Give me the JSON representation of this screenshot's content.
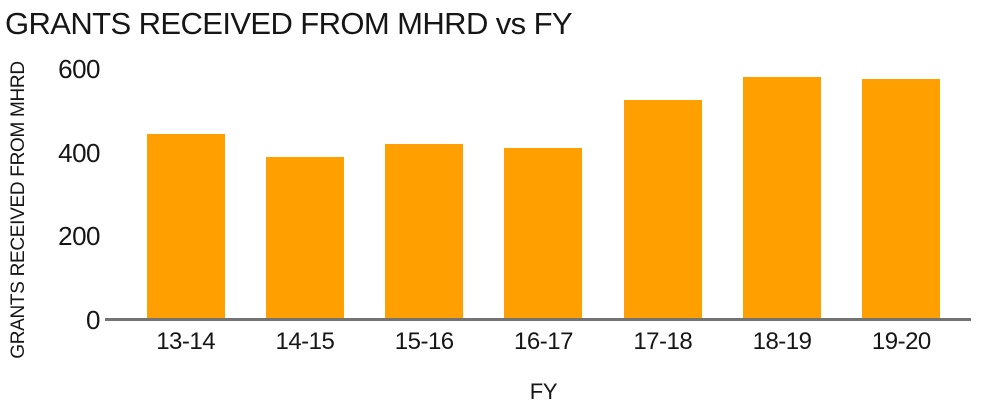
{
  "chart_data": {
    "type": "bar",
    "title": "GRANTS RECEIVED FROM MHRD vs FY",
    "categories": [
      "13-14",
      "14-15",
      "15-16",
      "16-17",
      "17-18",
      "18-19",
      "19-20"
    ],
    "values": [
      445,
      390,
      420,
      410,
      525,
      580,
      575
    ],
    "xlabel": "FY",
    "ylabel": "GRANTS RECEIVED FROM MHRD",
    "ylim": [
      0,
      600
    ],
    "yticks": [
      0,
      200,
      400,
      600
    ],
    "grid": false,
    "legend": false,
    "bar_color": "#FFA000",
    "axis_line_color": "#737373",
    "text_color": "#161616",
    "background": "#FFFFFF"
  }
}
